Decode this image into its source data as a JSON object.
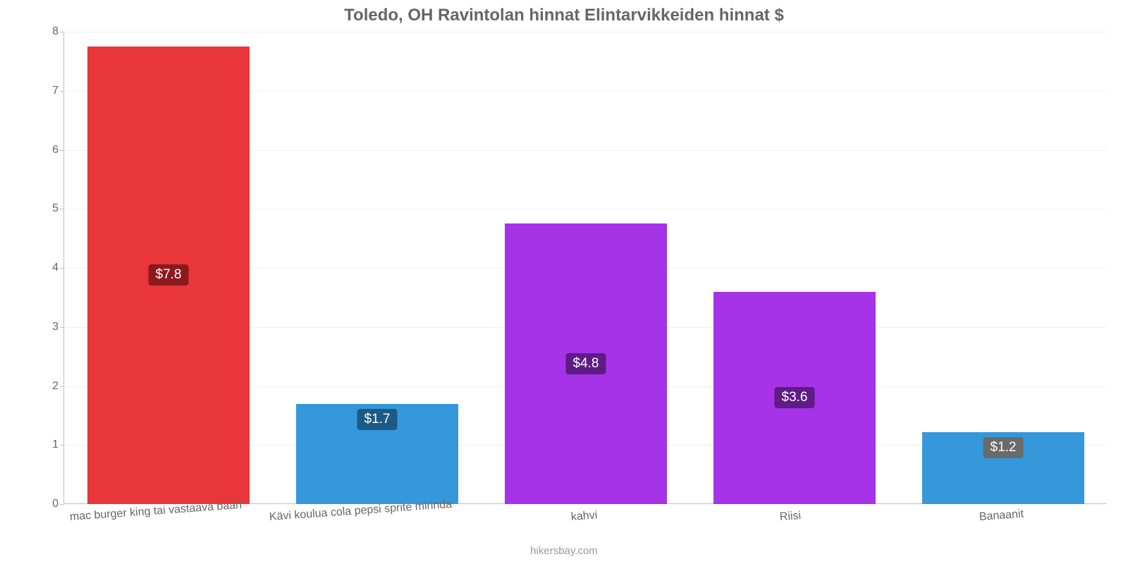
{
  "chart": {
    "type": "bar",
    "title": "Toledo, OH Ravintolan hinnat Elintarvikkeiden hinnat $",
    "title_fontsize": 24,
    "title_color": "#666666",
    "background_color": "#ffffff",
    "grid_color": "#f0f0f0",
    "axis_color": "#c0c0c0",
    "tick_color": "#666666",
    "tick_fontsize": 16,
    "ylim": [
      0,
      8
    ],
    "ytick_step": 1,
    "bar_width_ratio": 0.78,
    "categories": [
      "mac burger king tai vastaava baari",
      "Kävi koulua cola pepsi sprite mirinda",
      "kahvi",
      "Riisi",
      "Banaanit"
    ],
    "values": [
      7.75,
      1.7,
      4.75,
      3.6,
      1.22
    ],
    "value_labels": [
      "$7.8",
      "$1.7",
      "$4.8",
      "$3.6",
      "$1.2"
    ],
    "bar_colors": [
      "#e8363a",
      "#3498db",
      "#a633e8",
      "#a633e8",
      "#3498db"
    ],
    "label_bg_colors": [
      "#8b1a1d",
      "#1c5a85",
      "#5e1c85",
      "#5e1c85",
      "#6a6a6a"
    ],
    "label_fontsize": 19,
    "attribution": "hikersbay.com",
    "attribution_color": "#999999"
  }
}
